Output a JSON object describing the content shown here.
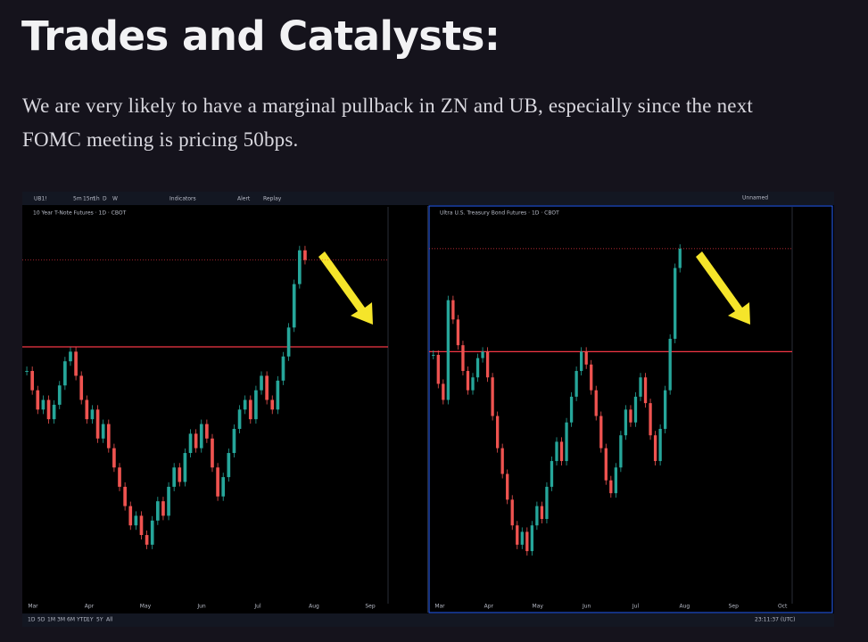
{
  "heading": "Trades and Catalysts:",
  "paragraph": [
    "We are very likely to have a marginal pullback in ZN and UB, especially since the next",
    "FOMC meeting is pricing 50bps."
  ],
  "toolbar": {
    "symbol": "UB1!",
    "intervals": [
      "5m",
      "15m",
      "1h",
      "D",
      "W"
    ],
    "indicators": "Indicators",
    "alert": "Alert",
    "replay": "Replay",
    "layout": "Unnamed"
  },
  "bottom_bar": {
    "ranges": [
      "1D",
      "5D",
      "1M",
      "3M",
      "6M",
      "YTD",
      "1Y",
      "5Y",
      "All"
    ],
    "clock": "23:11:37 (UTC)"
  },
  "panels": [
    {
      "title": "10 Year T-Note Futures · 1D · CBOT",
      "months": [
        "Mar",
        "Apr",
        "May",
        "Jun",
        "Jul",
        "Aug",
        "Sep"
      ],
      "ylim": [
        107,
        115
      ],
      "level": 112.1,
      "closes": [
        111.6,
        111.2,
        110.8,
        111.0,
        110.6,
        110.9,
        111.3,
        111.8,
        112.0,
        111.5,
        111.0,
        110.6,
        110.8,
        110.2,
        110.5,
        110.0,
        109.6,
        109.2,
        108.8,
        108.4,
        108.6,
        108.2,
        108.0,
        108.5,
        108.9,
        108.6,
        109.2,
        109.6,
        109.3,
        109.9,
        110.3,
        110.0,
        110.5,
        110.2,
        109.6,
        109.0,
        109.4,
        109.9,
        110.4,
        110.8,
        111.0,
        110.6,
        111.2,
        111.5,
        111.0,
        110.8,
        111.4,
        111.9,
        112.5,
        113.4,
        114.1,
        113.9
      ]
    },
    {
      "title": "Ultra U.S. Treasury Bond Futures · 1D · CBOT",
      "months": [
        "Mar",
        "Apr",
        "May",
        "Jun",
        "Jul",
        "Aug",
        "Sep",
        "Oct"
      ],
      "ylim": [
        116.5,
        128.5
      ],
      "level": 124.0,
      "closes": [
        123.9,
        123.0,
        122.5,
        125.6,
        125.0,
        124.2,
        123.4,
        122.8,
        123.2,
        123.8,
        124.0,
        123.2,
        122.0,
        121.0,
        120.2,
        119.4,
        118.6,
        118.0,
        118.4,
        117.8,
        118.6,
        119.2,
        118.8,
        119.8,
        120.6,
        121.2,
        120.6,
        121.8,
        122.6,
        123.4,
        124.0,
        123.6,
        122.8,
        122.0,
        121.0,
        120.0,
        119.6,
        120.4,
        121.4,
        122.2,
        121.8,
        122.6,
        123.2,
        122.4,
        121.4,
        120.6,
        121.6,
        122.8,
        124.4,
        126.6,
        127.2
      ]
    }
  ]
}
